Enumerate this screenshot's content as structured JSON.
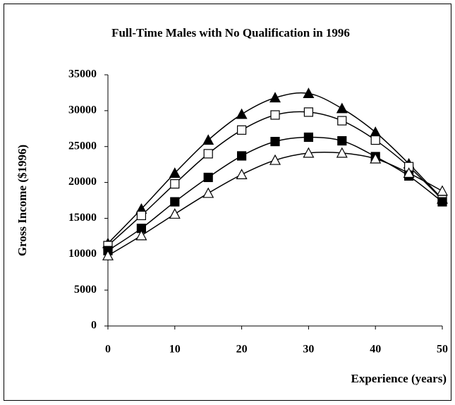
{
  "chart_data": {
    "type": "line",
    "title": "Full-Time Males with No Qualification in 1996",
    "x_label": "Experience (years)",
    "y_label": "Gross Income ($1996)",
    "x": [
      0,
      5,
      10,
      15,
      20,
      25,
      30,
      35,
      40,
      45,
      50
    ],
    "series": [
      {
        "color": "#000000",
        "marker": "triangle",
        "filled": true,
        "values": [
          11500,
          16300,
          21300,
          25900,
          29500,
          31800,
          32400,
          30300,
          27000,
          22600,
          17700
        ]
      },
      {
        "color": "#000000",
        "marker": "square",
        "filled": false,
        "values": [
          11200,
          15400,
          19800,
          24000,
          27300,
          29400,
          29800,
          28600,
          25900,
          22200,
          17600
        ]
      },
      {
        "color": "#000000",
        "marker": "square",
        "filled": true,
        "values": [
          10500,
          13600,
          17300,
          20700,
          23700,
          25700,
          26300,
          25800,
          23600,
          20900,
          17300
        ]
      },
      {
        "color": "#000000",
        "marker": "triangle",
        "filled": false,
        "values": [
          9800,
          12600,
          15600,
          18500,
          21100,
          23100,
          24100,
          24100,
          23300,
          21300,
          18800
        ]
      }
    ],
    "xlim": [
      0,
      50
    ],
    "xticks": [
      0,
      10,
      20,
      30,
      40,
      50
    ],
    "ylim": [
      0,
      35000
    ],
    "yticks": [
      0,
      5000,
      10000,
      15000,
      20000,
      25000,
      30000,
      35000
    ],
    "grid": false,
    "smooth": true
  }
}
